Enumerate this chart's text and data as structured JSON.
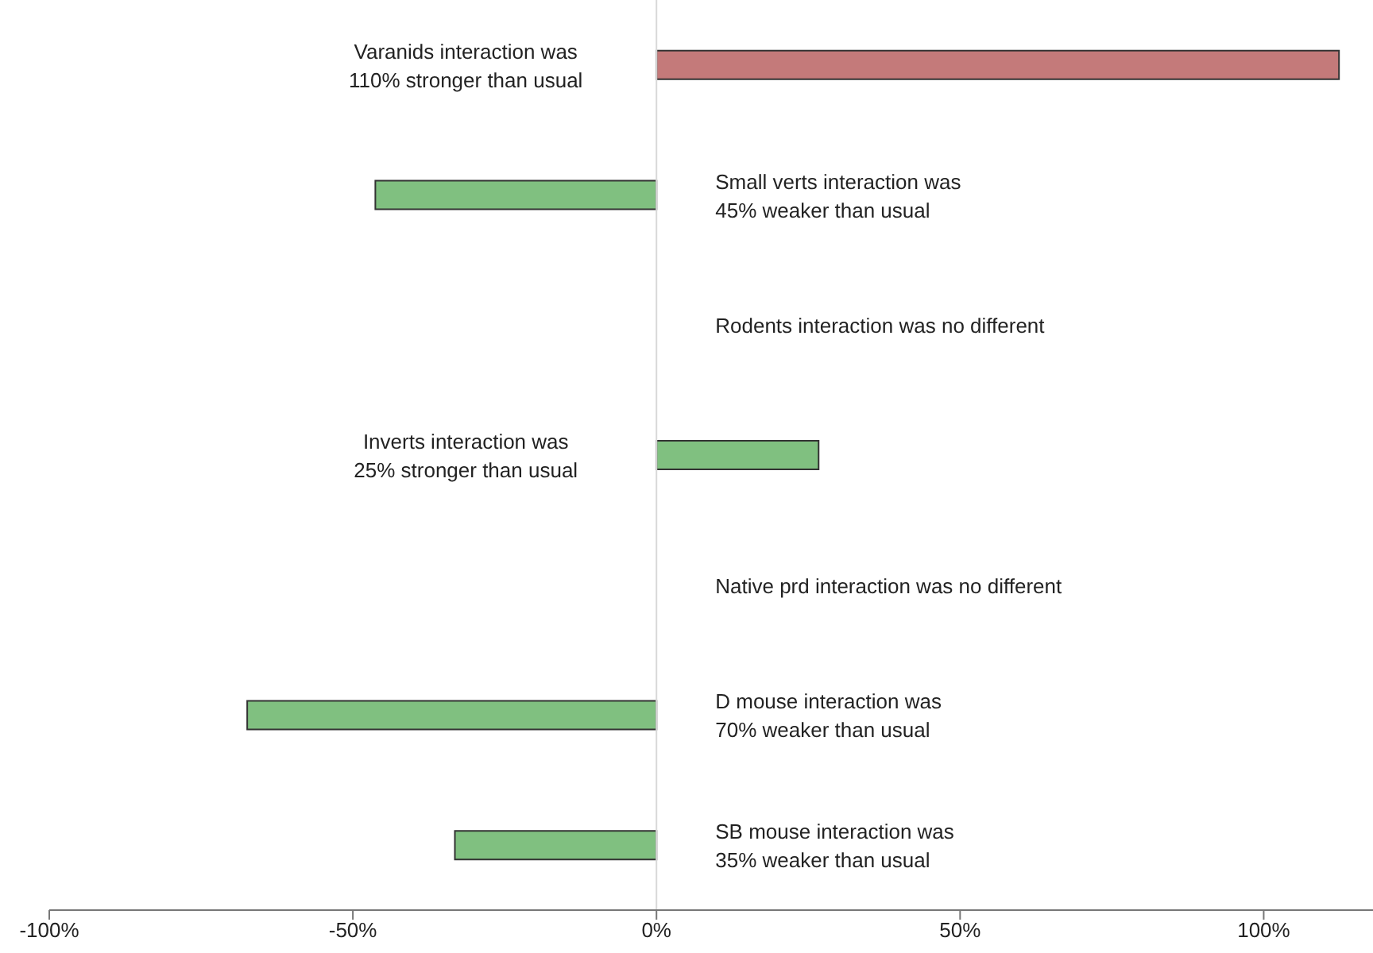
{
  "chart_data": {
    "type": "bar",
    "orientation": "horizontal",
    "categories": [
      null,
      null,
      null,
      null,
      null,
      null,
      null
    ],
    "values": [
      112.4,
      -46.3,
      0,
      26.7,
      0,
      -67.4,
      -33.2
    ],
    "colors": [
      "#c47a7a",
      "#80c080",
      "#80c080",
      "#80c080",
      "#80c080",
      "#80c080",
      "#80c080"
    ],
    "xlim": [
      -100,
      118
    ],
    "xticks": [
      {
        "value": -100,
        "label": "-100%"
      },
      {
        "value": -50,
        "label": "-50%"
      },
      {
        "value": 0,
        "label": "0%"
      },
      {
        "value": 50,
        "label": "50%"
      },
      {
        "value": 100,
        "label": "100%"
      }
    ],
    "grid": false,
    "ref_lines": [
      {
        "axis": "x",
        "value": 0,
        "color": "#d8d8d8"
      }
    ],
    "annotations": [
      "Varanids interaction was 110% stronger than usual",
      "Small verts interaction was 45% weaker than usual",
      "Rodents interaction was no different",
      "Inverts interaction was 25% stronger than usual",
      "Native prd interaction was no different",
      "D mouse interaction was 70% weaker than usual",
      "SB mouse interaction was 35% weaker than usual"
    ]
  }
}
